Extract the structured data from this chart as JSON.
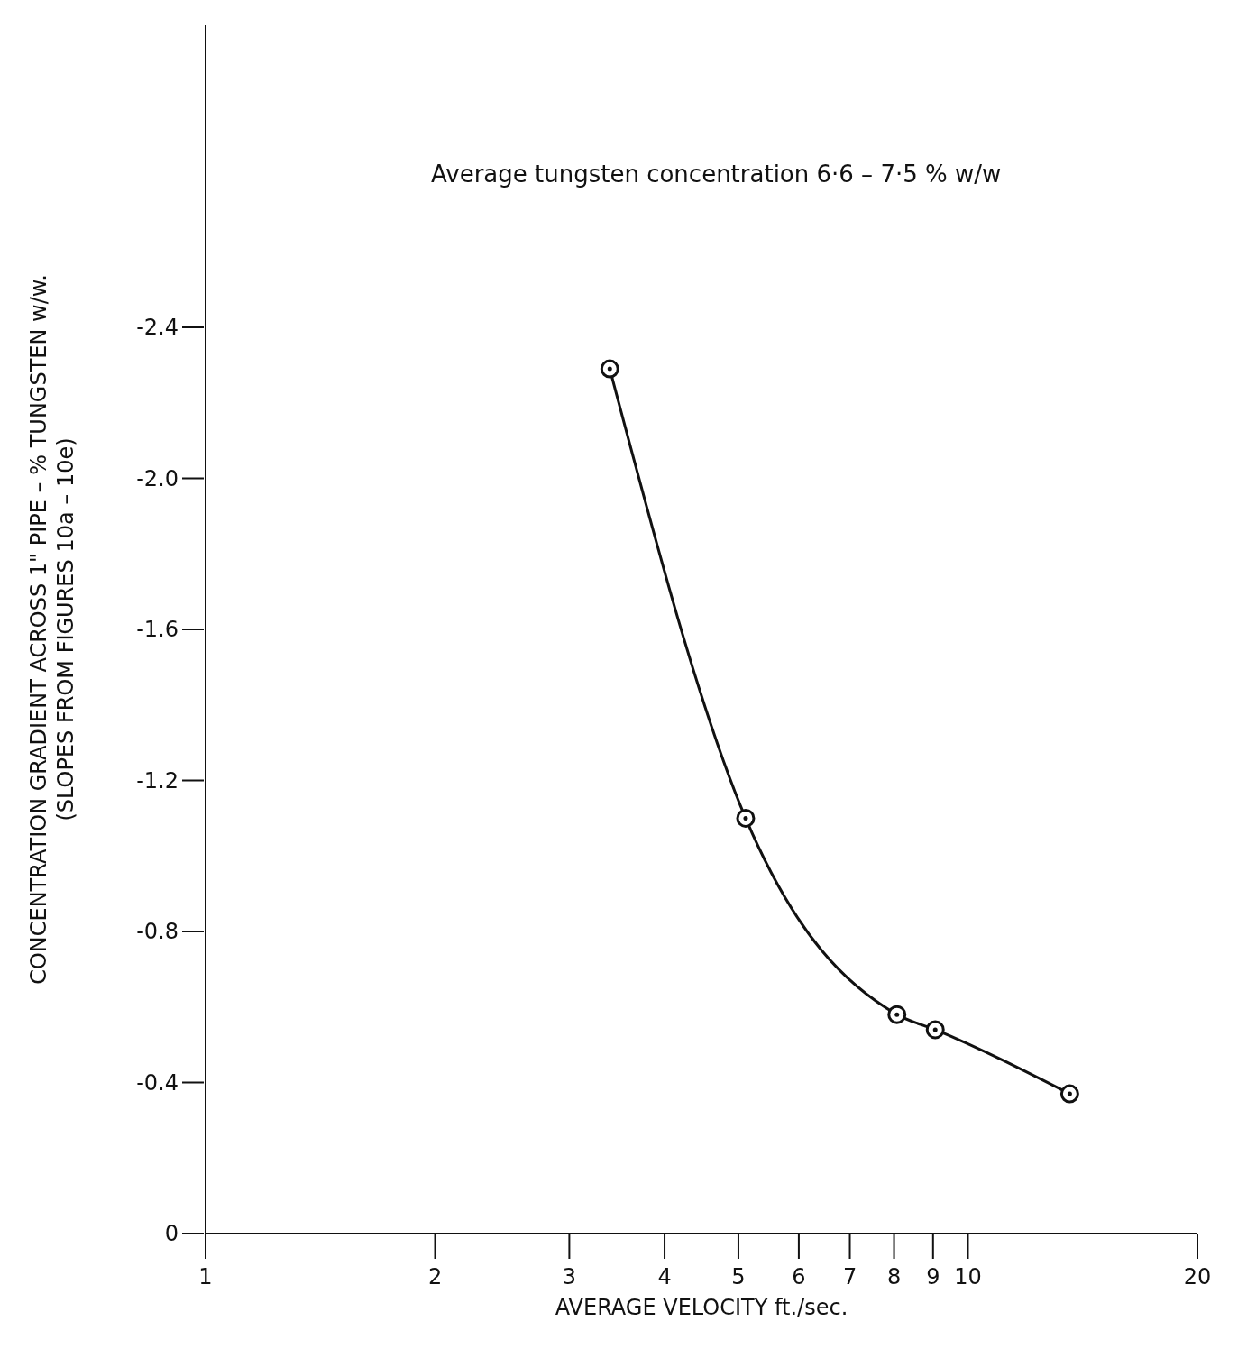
{
  "chart_data": {
    "type": "line",
    "xlabel": "AVERAGE VELOCITY ft./sec.",
    "ylabel": "CONCENTRATION GRADIENT ACROSS 1\" PIPE – % TUNGSTEN w/w.\n(SLOPES FROM FIGURES 10a – 10e)",
    "annotations": [
      "Average tungsten concentration 6·6 – 7·5 % w/w"
    ],
    "series": [
      {
        "color": "#111111",
        "x": [
          3.39,
          5.11,
          8.07,
          9.06,
          13.6
        ],
        "values": [
          -2.29,
          -1.1,
          -0.58,
          -0.54,
          -0.37
        ]
      }
    ],
    "log": "x",
    "xlim": [
      1,
      20
    ],
    "xticks": [
      1,
      2,
      3,
      4,
      5,
      6,
      7,
      8,
      9,
      10,
      20
    ],
    "ylim": [
      0,
      -3.2
    ],
    "yticks": [
      0,
      -0.4,
      -0.8,
      -1.2,
      -1.6,
      {
        "value": -2.0,
        "label": "-2.0"
      },
      -2.4
    ],
    "grid": false,
    "legend": false,
    "marker": "circle",
    "line_style": "solid"
  }
}
